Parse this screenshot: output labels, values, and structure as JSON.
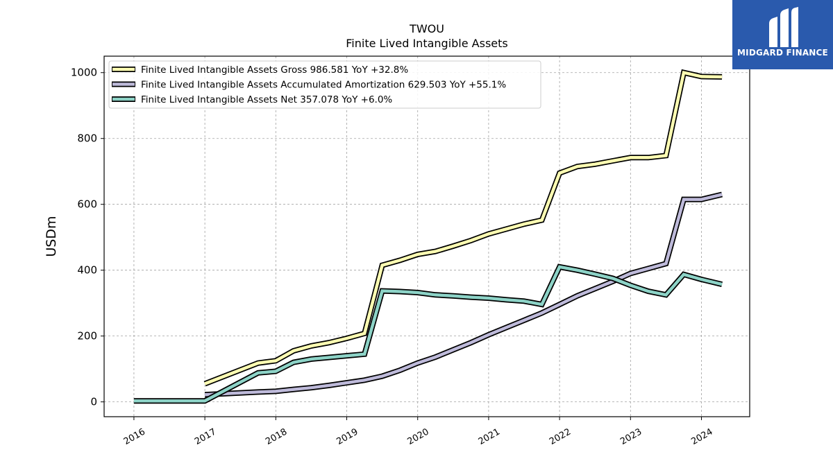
{
  "chart_data": {
    "type": "line",
    "title": "TWOU",
    "subtitle": "Finite Lived Intangible Assets",
    "ylabel": "USDm",
    "xlabel": "",
    "ylim": [
      -45,
      1050
    ],
    "xlim": [
      2015.58,
      2024.68
    ],
    "yticks": [
      0,
      200,
      400,
      600,
      800,
      1000
    ],
    "xticks": [
      2016,
      2017,
      2018,
      2019,
      2020,
      2021,
      2022,
      2023,
      2024
    ],
    "xtick_labels": [
      "2016",
      "2017",
      "2018",
      "2019",
      "2020",
      "2021",
      "2022",
      "2023",
      "2024"
    ],
    "grid": true,
    "legend_position": "top-left",
    "series": [
      {
        "name": "Finite Lived Intangible Assets Gross",
        "legend_label": "Finite Lived Intangible Assets Gross  986.581 YoY +32.8%",
        "color": "#ffffb3",
        "x": [
          2017.0,
          2017.75,
          2018.0,
          2018.25,
          2018.5,
          2018.75,
          2019.0,
          2019.25,
          2019.5,
          2019.75,
          2020.0,
          2020.25,
          2020.5,
          2020.75,
          2021.0,
          2021.25,
          2021.5,
          2021.75,
          2022.0,
          2022.25,
          2022.5,
          2022.75,
          2023.0,
          2023.25,
          2023.5,
          2023.75,
          2024.0,
          2024.29
        ],
        "y": [
          55,
          118,
          125,
          155,
          170,
          180,
          193,
          208,
          415,
          430,
          448,
          457,
          473,
          490,
          510,
          525,
          540,
          552,
          695,
          715,
          722,
          732,
          742,
          742,
          748,
          1000,
          988,
          987
        ]
      },
      {
        "name": "Finite Lived Intangible Assets Accumulated Amortization",
        "legend_label": "Finite Lived Intangible Assets Accumulated Amortization  629.503 YoY +55.1%",
        "color": "#bebada",
        "x": [
          2017.0,
          2017.75,
          2018.0,
          2018.25,
          2018.5,
          2018.75,
          2019.0,
          2019.25,
          2019.5,
          2019.75,
          2020.0,
          2020.25,
          2020.5,
          2020.75,
          2021.0,
          2021.25,
          2021.5,
          2021.75,
          2022.0,
          2022.25,
          2022.5,
          2022.75,
          2023.0,
          2023.25,
          2023.5,
          2023.75,
          2024.0,
          2024.29
        ],
        "y": [
          22,
          30,
          32,
          38,
          43,
          50,
          58,
          66,
          78,
          96,
          118,
          136,
          158,
          180,
          204,
          226,
          248,
          270,
          296,
          322,
          344,
          366,
          390,
          405,
          420,
          615,
          615,
          630
        ]
      },
      {
        "name": "Finite Lived Intangible Assets Net",
        "legend_label": "Finite Lived Intangible Assets Net  357.078 YoY +6.0%",
        "color": "#8dd3c7",
        "x": [
          2016.0,
          2017.0,
          2017.75,
          2018.0,
          2018.25,
          2018.5,
          2018.75,
          2019.0,
          2019.25,
          2019.5,
          2019.75,
          2020.0,
          2020.25,
          2020.5,
          2020.75,
          2021.0,
          2021.25,
          2021.5,
          2021.75,
          2022.0,
          2022.25,
          2022.5,
          2022.75,
          2023.0,
          2023.25,
          2023.5,
          2023.75,
          2024.0,
          2024.29
        ],
        "y": [
          3,
          3,
          88,
          93,
          120,
          130,
          135,
          140,
          145,
          337,
          335,
          332,
          325,
          322,
          318,
          315,
          310,
          306,
          296,
          410,
          400,
          388,
          375,
          354,
          336,
          325,
          387,
          372,
          357
        ]
      }
    ]
  },
  "logo": {
    "text": "MIDGARD FINANCE",
    "color": "#2a5aad"
  }
}
